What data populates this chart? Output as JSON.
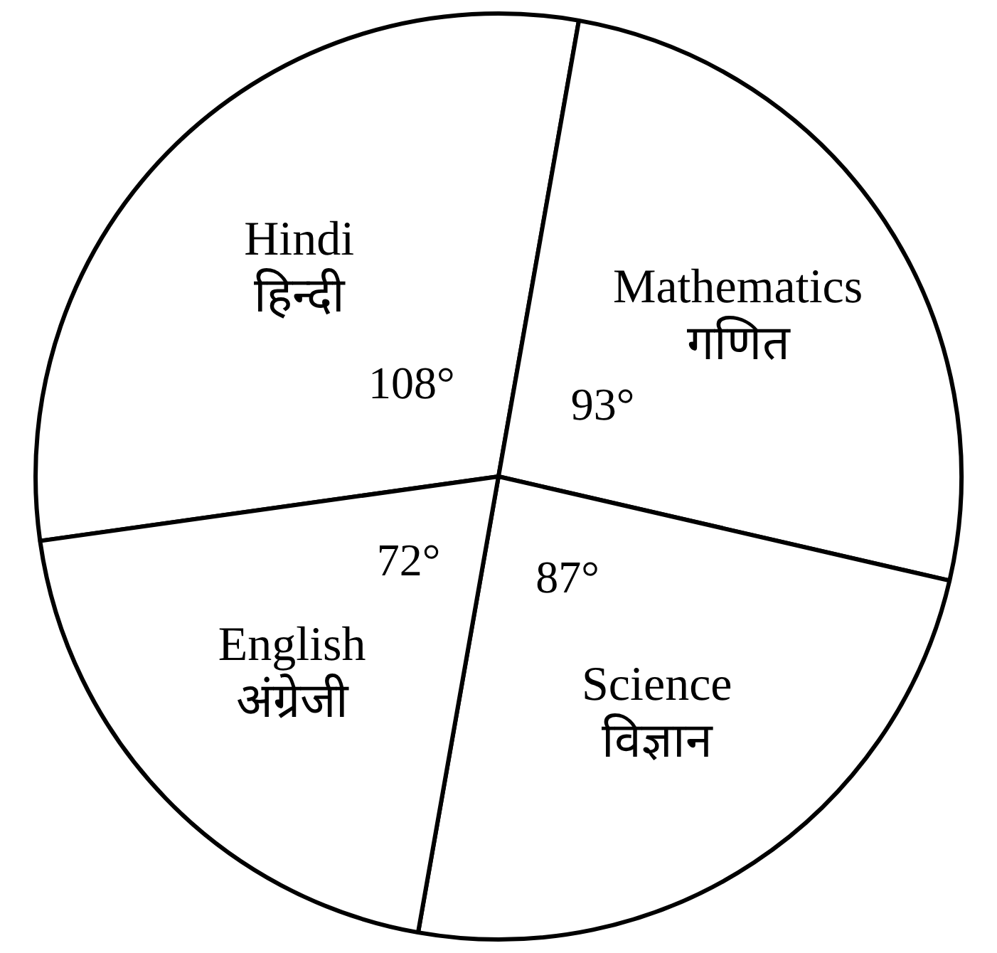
{
  "chart_data": {
    "type": "pie",
    "categories": [
      "Hindi हिन्दी",
      "Mathematics गणित",
      "Science विज्ञान",
      "English अंग्रेजी"
    ],
    "values": [
      108,
      93,
      87,
      72
    ],
    "value_labels": [
      "108°",
      "93°",
      "87°",
      "72°"
    ],
    "colors": [
      "#ffffff",
      "#ffffff",
      "#ffffff",
      "#ffffff"
    ],
    "legend": false
  }
}
